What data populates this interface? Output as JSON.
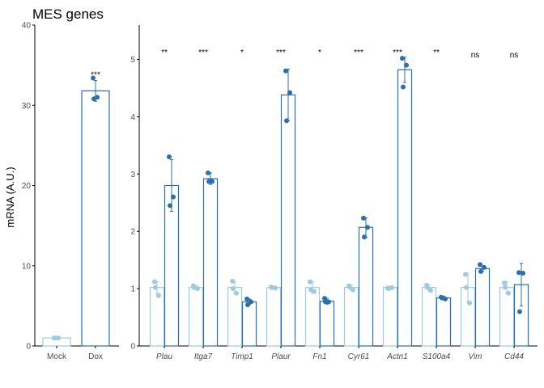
{
  "title": "MES genes",
  "ylabel": "mRNA (A.U.)",
  "colors": {
    "control": "#9ecae1",
    "treated": "#2b6fad",
    "axis": "#000000",
    "text": "#4d4d4d"
  },
  "chart_data": [
    {
      "type": "bar",
      "categories": [
        "Mock",
        "Dox"
      ],
      "values": [
        1.0,
        31.8
      ],
      "error": [
        0.05,
        1.3
      ],
      "points": [
        [
          1.0,
          1.0,
          1.0
        ],
        [
          33.4,
          31.0,
          30.8
        ]
      ],
      "significance": [
        "",
        "***"
      ],
      "ylim": [
        0,
        40
      ],
      "yticks": [
        "0",
        "10",
        "20",
        "30",
        "40"
      ],
      "italic_labels": false
    },
    {
      "type": "bar",
      "categories": [
        "Plau",
        "Itga7",
        "Timp1",
        "Plaur",
        "Fn1",
        "Cyr61",
        "Actn1",
        "S100a4",
        "Vim",
        "Cd44"
      ],
      "series": [
        {
          "name": "",
          "values": [
            1.02,
            1.02,
            1.02,
            1.02,
            1.02,
            1.02,
            1.02,
            1.02,
            1.02,
            1.02
          ],
          "error": [
            0.1,
            0.03,
            0.1,
            0.02,
            0.1,
            0.05,
            0.02,
            0.05,
            0.25,
            0.1
          ],
          "points": [
            [
              1.12,
              0.88,
              1.02
            ],
            [
              1.05,
              1.0,
              1.02
            ],
            [
              1.13,
              0.92,
              1.0
            ],
            [
              1.03,
              1.01,
              1.02
            ],
            [
              1.12,
              0.95,
              0.98
            ],
            [
              1.05,
              0.98,
              1.03
            ],
            [
              1.01,
              1.02,
              1.0
            ],
            [
              1.06,
              0.97,
              1.02
            ],
            [
              1.25,
              0.75,
              1.02
            ],
            [
              1.1,
              0.92,
              1.02
            ]
          ]
        },
        {
          "name": "",
          "values": [
            2.8,
            2.92,
            0.77,
            4.38,
            0.78,
            2.07,
            4.82,
            0.84,
            1.35,
            1.07
          ],
          "error": [
            0.45,
            0.1,
            0.05,
            0.45,
            0.05,
            0.17,
            0.22,
            0.03,
            0.05,
            0.37
          ],
          "points": [
            [
              3.3,
              2.6,
              2.45
            ],
            [
              3.02,
              2.87,
              2.87
            ],
            [
              0.82,
              0.77,
              0.72
            ],
            [
              4.8,
              4.42,
              3.93
            ],
            [
              0.83,
              0.77,
              0.77
            ],
            [
              2.23,
              2.07,
              1.9
            ],
            [
              5.02,
              4.9,
              4.52
            ],
            [
              0.85,
              0.82,
              0.84
            ],
            [
              1.42,
              1.37,
              1.3
            ],
            [
              1.28,
              1.27,
              0.6
            ]
          ]
        }
      ],
      "significance": [
        "**",
        "***",
        "*",
        "***",
        "*",
        "***",
        "***",
        "**",
        "ns",
        "ns"
      ],
      "ylim": [
        0,
        5.6
      ],
      "yticks": [
        "0",
        "1",
        "2",
        "3",
        "4",
        "5"
      ],
      "italic_labels": true
    }
  ]
}
